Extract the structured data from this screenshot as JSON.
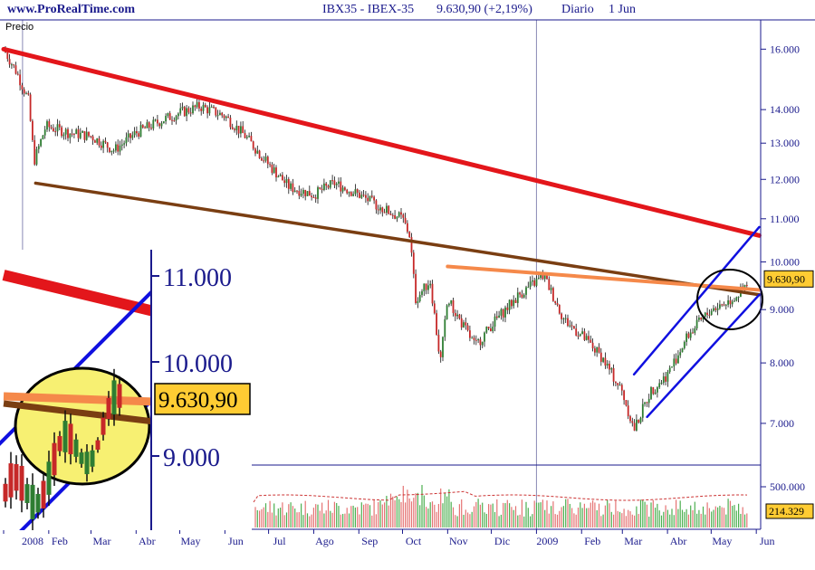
{
  "header": {
    "site": "www.ProRealTime.com",
    "instrument": "IBX35 - IBEX-35",
    "quote": "9.630,90 (+2,19%)",
    "period": "Diario",
    "date": "1 Jun"
  },
  "colors": {
    "background": "#ffffff",
    "axis_text": "#1a1a8c",
    "candle_up": "#2e7d32",
    "candle_down": "#c62828",
    "wick": "#111111",
    "resistance_line": "#e3161b",
    "support_line": "#7a3e12",
    "orange_line": "#f5894a",
    "channel": "#1010e0",
    "highlight_circle": "#f7f072",
    "price_badge": "#ffcc33"
  },
  "chart_data": [
    {
      "type": "candlestick",
      "panel": "price",
      "panel_label": "Precio",
      "scale": "log",
      "ylim": [
        6500,
        17000
      ],
      "y_ticks": [
        7000,
        8000,
        9000,
        10000,
        11000,
        12000,
        13000,
        14000,
        16000
      ],
      "y_tick_labels": [
        "7.000",
        "8.000",
        "9.000",
        "10.000",
        "11.000",
        "12.000",
        "13.000",
        "14.000",
        "16.000"
      ],
      "x_labels": [
        "2008",
        "Feb",
        "Mar",
        "Abr",
        "May",
        "Jun",
        "Jul",
        "Ago",
        "Sep",
        "Oct",
        "Nov",
        "Dic",
        "2009",
        "Feb",
        "Mar",
        "Abr",
        "May",
        "Jun"
      ],
      "last_price_label": "9.630,90",
      "last_price": 9630.9,
      "close_path": [
        [
          "2008-01-01",
          16000
        ],
        [
          "2008-01-10",
          15200
        ],
        [
          "2008-01-18",
          14300
        ],
        [
          "2008-01-22",
          12500
        ],
        [
          "2008-01-30",
          13500
        ],
        [
          "2008-02-15",
          13300
        ],
        [
          "2008-03-01",
          13200
        ],
        [
          "2008-03-17",
          12800
        ],
        [
          "2008-04-01",
          13300
        ],
        [
          "2008-04-20",
          13700
        ],
        [
          "2008-05-01",
          13900
        ],
        [
          "2008-05-15",
          14100
        ],
        [
          "2008-06-01",
          13800
        ],
        [
          "2008-06-15",
          13200
        ],
        [
          "2008-07-01",
          12400
        ],
        [
          "2008-07-15",
          11800
        ],
        [
          "2008-08-01",
          11600
        ],
        [
          "2008-08-15",
          11900
        ],
        [
          "2008-09-01",
          11600
        ],
        [
          "2008-09-15",
          11300
        ],
        [
          "2008-10-01",
          11000
        ],
        [
          "2008-10-06",
          10600
        ],
        [
          "2008-10-10",
          9200
        ],
        [
          "2008-10-20",
          9600
        ],
        [
          "2008-10-27",
          8000
        ],
        [
          "2008-11-01",
          9200
        ],
        [
          "2008-11-20",
          8300
        ],
        [
          "2008-12-01",
          8700
        ],
        [
          "2008-12-20",
          9300
        ],
        [
          "2009-01-06",
          9700
        ],
        [
          "2009-01-20",
          8800
        ],
        [
          "2009-02-01",
          8500
        ],
        [
          "2009-02-15",
          8100
        ],
        [
          "2009-03-01",
          7500
        ],
        [
          "2009-03-09",
          6900
        ],
        [
          "2009-03-20",
          7500
        ],
        [
          "2009-04-01",
          7800
        ],
        [
          "2009-04-15",
          8500
        ],
        [
          "2009-05-01",
          9000
        ],
        [
          "2009-05-15",
          9200
        ],
        [
          "2009-06-01",
          9630.9
        ]
      ],
      "trendlines": [
        {
          "name": "resistance",
          "from": [
            "2008-01-01",
            16000
          ],
          "to": [
            "2009-06-03",
            10600
          ]
        },
        {
          "name": "support",
          "from": [
            "2008-01-23",
            11900
          ],
          "to": [
            "2009-06-03",
            9300
          ]
        },
        {
          "name": "orange",
          "from": [
            "2008-11-01",
            9900
          ],
          "to": [
            "2009-06-03",
            9400
          ]
        },
        {
          "name": "channel-upper",
          "from": [
            "2009-03-09",
            7800
          ],
          "to": [
            "2009-06-03",
            10800
          ]
        },
        {
          "name": "channel-lower",
          "from": [
            "2009-03-18",
            7100
          ],
          "to": [
            "2009-06-03",
            9300
          ]
        }
      ]
    },
    {
      "type": "bar",
      "panel": "volume",
      "y_tick_labels": [
        "500.000"
      ],
      "last_volume_label": "214.329",
      "last_volume": 214329
    }
  ],
  "inset": {
    "y_tick_labels": [
      "11.000",
      "10.000",
      "9.000"
    ],
    "price_label": "9.630,90"
  }
}
